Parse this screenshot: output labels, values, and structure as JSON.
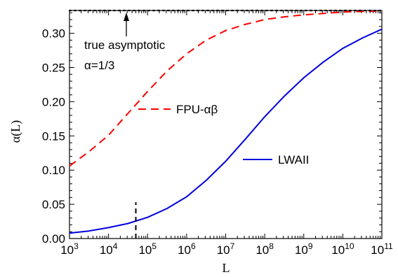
{
  "chart_data": {
    "type": "line",
    "xlabel": "L",
    "ylabel": "α(L)",
    "xscale": "log10",
    "xlim": [
      1000,
      100000000000
    ],
    "ylim": [
      0,
      0.3333
    ],
    "grid": false,
    "x_ticks": [
      {
        "base": "10",
        "exp": "3"
      },
      {
        "base": "10",
        "exp": "4"
      },
      {
        "base": "10",
        "exp": "5"
      },
      {
        "base": "10",
        "exp": "6"
      },
      {
        "base": "10",
        "exp": "7"
      },
      {
        "base": "10",
        "exp": "8"
      },
      {
        "base": "10",
        "exp": "9"
      },
      {
        "base": "10",
        "exp": "10"
      },
      {
        "base": "10",
        "exp": "11"
      }
    ],
    "y_ticks": [
      "0.00",
      "0.05",
      "0.10",
      "0.15",
      "0.20",
      "0.25",
      "0.30"
    ],
    "series": [
      {
        "name": "FPU-αβ",
        "color": "#ff0000",
        "style": "dashed",
        "x": [
          1000,
          3162,
          10000,
          31623,
          100000,
          316228,
          1000000,
          3162278,
          10000000,
          31622777,
          100000000,
          316227766,
          1000000000,
          3162277660,
          10000000000,
          31622776602,
          100000000000
        ],
        "y": [
          0.106,
          0.127,
          0.151,
          0.183,
          0.215,
          0.245,
          0.27,
          0.29,
          0.304,
          0.313,
          0.32,
          0.324,
          0.327,
          0.329,
          0.331,
          0.332,
          0.3325
        ]
      },
      {
        "name": "LWAII",
        "color": "#0000dd",
        "style": "solid",
        "x": [
          1000,
          3162,
          10000,
          31623,
          100000,
          316228,
          1000000,
          3162278,
          10000000,
          31622777,
          100000000,
          316227766,
          1000000000,
          3162277660,
          10000000000,
          31622776602,
          100000000000
        ],
        "y": [
          0.008,
          0.011,
          0.016,
          0.022,
          0.031,
          0.044,
          0.061,
          0.085,
          0.113,
          0.145,
          0.178,
          0.208,
          0.235,
          0.258,
          0.278,
          0.293,
          0.306
        ]
      },
      {
        "name": "asymptote",
        "color": "#000000",
        "style": "dotted",
        "x": [
          1000,
          100000000000
        ],
        "y": [
          0.3333,
          0.3333
        ]
      }
    ],
    "vertical_marker": {
      "x": 50000,
      "y_from": 0.0,
      "y_to": 0.053,
      "color": "#000000",
      "style": "dashed"
    },
    "annotations": {
      "asymptote_line1": "true asymptotic",
      "asymptote_line2": "α=1/3",
      "fpu_label": "FPU-αβ",
      "lwa_label": "LWAII"
    }
  }
}
